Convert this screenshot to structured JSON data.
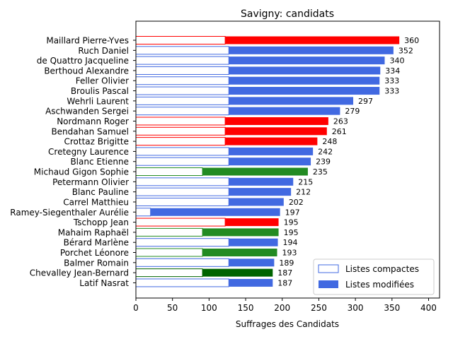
{
  "chart_data": {
    "type": "bar",
    "orientation": "horizontal",
    "stacked": true,
    "title": "Savigny: candidats",
    "xlabel": "Suffrages des Candidats",
    "ylabel": "",
    "xlim": [
      0,
      415
    ],
    "xticks": [
      0,
      50,
      100,
      150,
      200,
      250,
      300,
      350,
      400
    ],
    "legend": {
      "placement": "lower-right",
      "entries": [
        {
          "label": "Listes compactes",
          "style": "outline",
          "color": "#4169e1"
        },
        {
          "label": "Listes modifiées",
          "style": "filled",
          "color": "#4169e1"
        }
      ]
    },
    "categories": [
      "Maillard Pierre-Yves",
      "Ruch Daniel",
      "de Quattro Jacqueline",
      "Berthoud Alexandre",
      "Feller Olivier",
      "Broulis Pascal",
      "Wehrli Laurent",
      "Aschwanden Sergei",
      "Nordmann Roger",
      "Bendahan Samuel",
      "Crottaz Brigitte",
      "Cretegny Laurence",
      "Blanc Etienne",
      "Michaud Gigon Sophie",
      "Petermann Olivier",
      "Blanc Pauline",
      "Carrel Matthieu",
      "Ramey-Siegenthaler Aurélie",
      "Tschopp Jean",
      "Mahaim Raphaël",
      "Bérard Marlène",
      "Porchet Léonore",
      "Balmer Romain",
      "Chevalley Jean-Bernard",
      "Latif Nasrat"
    ],
    "series": [
      {
        "name": "Listes compactes",
        "values": [
          122,
          127,
          127,
          127,
          127,
          127,
          127,
          127,
          122,
          122,
          122,
          127,
          127,
          91,
          127,
          127,
          127,
          20,
          122,
          91,
          127,
          91,
          127,
          91,
          127
        ]
      },
      {
        "name": "Listes modifiées",
        "values": [
          238,
          225,
          213,
          207,
          206,
          206,
          170,
          152,
          141,
          139,
          126,
          115,
          112,
          144,
          88,
          85,
          75,
          177,
          73,
          104,
          67,
          102,
          62,
          96,
          60
        ]
      }
    ],
    "totals": [
      360,
      352,
      340,
      334,
      333,
      333,
      297,
      279,
      263,
      261,
      248,
      242,
      239,
      235,
      215,
      212,
      202,
      197,
      195,
      195,
      194,
      193,
      189,
      187,
      187
    ],
    "bar_colors": [
      "#ff0000",
      "#4169e1",
      "#4169e1",
      "#4169e1",
      "#4169e1",
      "#4169e1",
      "#4169e1",
      "#4169e1",
      "#ff0000",
      "#ff0000",
      "#ff0000",
      "#4169e1",
      "#4169e1",
      "#228b22",
      "#4169e1",
      "#4169e1",
      "#4169e1",
      "#4169e1",
      "#ff0000",
      "#228b22",
      "#4169e1",
      "#228b22",
      "#4169e1",
      "#006400",
      "#4169e1"
    ]
  }
}
